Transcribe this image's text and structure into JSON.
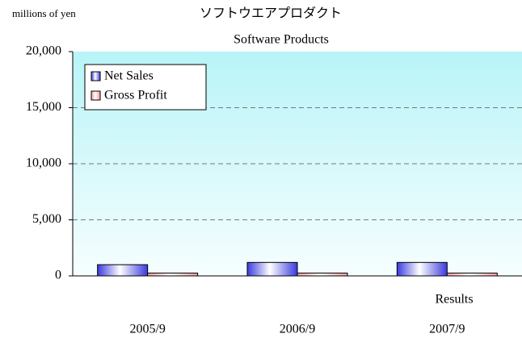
{
  "chart_data": {
    "type": "bar",
    "title": "ソフトウエアプロダクト",
    "subtitle": "Software Products",
    "y_label": "millions of yen",
    "annotation": "Results",
    "categories": [
      "2005/9",
      "2006/9",
      "2007/9"
    ],
    "series": [
      {
        "name": "Net Sales",
        "color": "#3a3adf",
        "values": [
          1000,
          1200,
          1200
        ]
      },
      {
        "name": "Gross Profit",
        "color": "#ff9a9a",
        "values": [
          250,
          250,
          250
        ]
      }
    ],
    "ylim": [
      0,
      20000
    ],
    "yticks": [
      0,
      {
        "value": 5000,
        "label": "5,000"
      },
      {
        "value": 10000,
        "label": "10,000"
      },
      {
        "value": 15000,
        "label": "15,000"
      },
      {
        "value": 20000,
        "label": "20,000"
      }
    ],
    "grid": true,
    "legend": "upper left"
  }
}
